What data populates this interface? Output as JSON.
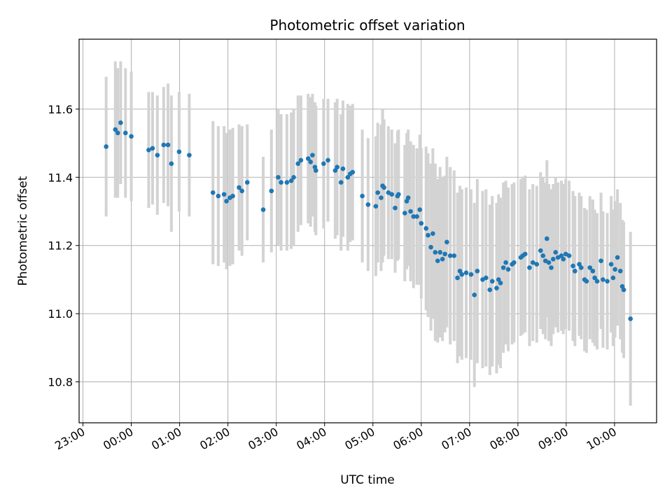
{
  "chart_data": {
    "type": "scatter",
    "title": "Photometric offset variation",
    "xlabel": "UTC time",
    "ylabel": "Photometric offset",
    "x_unit": "hours",
    "xlim": [
      -1.08,
      10.87
    ],
    "ylim": [
      10.68,
      11.805
    ],
    "x_ticks": [
      -1,
      0,
      1,
      2,
      3,
      4,
      5,
      6,
      7,
      8,
      9,
      10
    ],
    "x_tick_labels": [
      "23:00",
      "00:00",
      "01:00",
      "02:00",
      "03:00",
      "04:00",
      "05:00",
      "06:00",
      "07:00",
      "08:00",
      "09:00",
      "10:00"
    ],
    "y_ticks": [
      10.8,
      11.0,
      11.2,
      11.4,
      11.6
    ],
    "y_tick_labels": [
      "10.8",
      "11.0",
      "11.2",
      "11.4",
      "11.6"
    ],
    "grid": true,
    "colors": {
      "points": "#1f77b4",
      "error_bars": "#d3d3d3",
      "grid": "#b0b0b0"
    },
    "series": [
      {
        "points": [
          [
            -0.52,
            11.49,
            0.205
          ],
          [
            -0.33,
            11.54,
            0.2
          ],
          [
            -0.28,
            11.53,
            0.19
          ],
          [
            -0.22,
            11.56,
            0.18
          ],
          [
            -0.12,
            11.53,
            0.19
          ],
          [
            0.0,
            11.52,
            0.19
          ],
          [
            0.36,
            11.48,
            0.17
          ],
          [
            0.44,
            11.485,
            0.165
          ],
          [
            0.54,
            11.465,
            0.175
          ],
          [
            0.67,
            11.495,
            0.17
          ],
          [
            0.76,
            11.495,
            0.18
          ],
          [
            0.83,
            11.44,
            0.2
          ],
          [
            0.99,
            11.475,
            0.175
          ],
          [
            1.2,
            11.465,
            0.18
          ],
          [
            1.69,
            11.355,
            0.21
          ],
          [
            1.8,
            11.345,
            0.205
          ],
          [
            1.92,
            11.35,
            0.2
          ],
          [
            1.97,
            11.33,
            0.2
          ],
          [
            2.04,
            11.34,
            0.2
          ],
          [
            2.1,
            11.345,
            0.2
          ],
          [
            2.23,
            11.37,
            0.185
          ],
          [
            2.29,
            11.36,
            0.19
          ],
          [
            2.4,
            11.385,
            0.17
          ],
          [
            2.73,
            11.305,
            0.155
          ],
          [
            2.9,
            11.36,
            0.18
          ],
          [
            3.04,
            11.4,
            0.2
          ],
          [
            3.1,
            11.385,
            0.2
          ],
          [
            3.22,
            11.385,
            0.2
          ],
          [
            3.31,
            11.39,
            0.2
          ],
          [
            3.36,
            11.4,
            0.2
          ],
          [
            3.45,
            11.44,
            0.2
          ],
          [
            3.51,
            11.45,
            0.19
          ],
          [
            3.66,
            11.455,
            0.19
          ],
          [
            3.71,
            11.445,
            0.19
          ],
          [
            3.75,
            11.465,
            0.18
          ],
          [
            3.8,
            11.43,
            0.19
          ],
          [
            3.82,
            11.42,
            0.19
          ],
          [
            3.98,
            11.44,
            0.19
          ],
          [
            4.07,
            11.45,
            0.18
          ],
          [
            4.22,
            11.42,
            0.2
          ],
          [
            4.26,
            11.43,
            0.2
          ],
          [
            4.34,
            11.385,
            0.2
          ],
          [
            4.38,
            11.425,
            0.2
          ],
          [
            4.48,
            11.4,
            0.215
          ],
          [
            4.53,
            11.41,
            0.2
          ],
          [
            4.58,
            11.415,
            0.2
          ],
          [
            4.78,
            11.345,
            0.195
          ],
          [
            4.9,
            11.32,
            0.195
          ],
          [
            5.06,
            11.315,
            0.205
          ],
          [
            5.1,
            11.355,
            0.205
          ],
          [
            5.17,
            11.34,
            0.215
          ],
          [
            5.2,
            11.375,
            0.225
          ],
          [
            5.23,
            11.37,
            0.2
          ],
          [
            5.32,
            11.355,
            0.195
          ],
          [
            5.39,
            11.35,
            0.19
          ],
          [
            5.46,
            11.31,
            0.19
          ],
          [
            5.51,
            11.345,
            0.19
          ],
          [
            5.53,
            11.35,
            0.19
          ],
          [
            5.66,
            11.295,
            0.2
          ],
          [
            5.7,
            11.33,
            0.2
          ],
          [
            5.73,
            11.34,
            0.2
          ],
          [
            5.78,
            11.3,
            0.205
          ],
          [
            5.84,
            11.285,
            0.21
          ],
          [
            5.91,
            11.285,
            0.2
          ],
          [
            5.97,
            11.305,
            0.22
          ],
          [
            6.0,
            11.265,
            0.22
          ],
          [
            6.1,
            11.25,
            0.24
          ],
          [
            6.14,
            11.23,
            0.24
          ],
          [
            6.2,
            11.195,
            0.245
          ],
          [
            6.24,
            11.235,
            0.25
          ],
          [
            6.29,
            11.18,
            0.26
          ],
          [
            6.34,
            11.155,
            0.24
          ],
          [
            6.39,
            11.18,
            0.25
          ],
          [
            6.44,
            11.16,
            0.24
          ],
          [
            6.49,
            11.175,
            0.23
          ],
          [
            6.53,
            11.21,
            0.25
          ],
          [
            6.6,
            11.17,
            0.26
          ],
          [
            6.68,
            11.17,
            0.25
          ],
          [
            6.75,
            11.105,
            0.25
          ],
          [
            6.8,
            11.125,
            0.25
          ],
          [
            6.84,
            11.115,
            0.25
          ],
          [
            6.93,
            11.12,
            0.25
          ],
          [
            7.03,
            11.115,
            0.25
          ],
          [
            7.1,
            11.055,
            0.27
          ],
          [
            7.16,
            11.125,
            0.27
          ],
          [
            7.27,
            11.1,
            0.26
          ],
          [
            7.34,
            11.105,
            0.26
          ],
          [
            7.42,
            11.07,
            0.25
          ],
          [
            7.47,
            11.095,
            0.25
          ],
          [
            7.56,
            11.075,
            0.25
          ],
          [
            7.6,
            11.1,
            0.25
          ],
          [
            7.64,
            11.09,
            0.25
          ],
          [
            7.7,
            11.135,
            0.25
          ],
          [
            7.75,
            11.15,
            0.24
          ],
          [
            7.8,
            11.13,
            0.24
          ],
          [
            7.88,
            11.145,
            0.235
          ],
          [
            7.92,
            11.15,
            0.235
          ],
          [
            8.06,
            11.165,
            0.23
          ],
          [
            8.1,
            11.17,
            0.23
          ],
          [
            8.15,
            11.175,
            0.23
          ],
          [
            8.24,
            11.135,
            0.23
          ],
          [
            8.31,
            11.15,
            0.23
          ],
          [
            8.39,
            11.145,
            0.23
          ],
          [
            8.47,
            11.185,
            0.23
          ],
          [
            8.52,
            11.17,
            0.23
          ],
          [
            8.57,
            11.155,
            0.23
          ],
          [
            8.6,
            11.22,
            0.23
          ],
          [
            8.64,
            11.15,
            0.23
          ],
          [
            8.69,
            11.135,
            0.23
          ],
          [
            8.73,
            11.16,
            0.22
          ],
          [
            8.78,
            11.18,
            0.22
          ],
          [
            8.83,
            11.165,
            0.22
          ],
          [
            8.9,
            11.17,
            0.22
          ],
          [
            8.94,
            11.16,
            0.22
          ],
          [
            8.99,
            11.175,
            0.22
          ],
          [
            9.06,
            11.17,
            0.22
          ],
          [
            9.14,
            11.14,
            0.22
          ],
          [
            9.18,
            11.125,
            0.22
          ],
          [
            9.27,
            11.145,
            0.21
          ],
          [
            9.31,
            11.135,
            0.21
          ],
          [
            9.38,
            11.1,
            0.21
          ],
          [
            9.42,
            11.095,
            0.21
          ],
          [
            9.49,
            11.135,
            0.21
          ],
          [
            9.55,
            11.125,
            0.21
          ],
          [
            9.59,
            11.105,
            0.2
          ],
          [
            9.64,
            11.095,
            0.2
          ],
          [
            9.72,
            11.155,
            0.2
          ],
          [
            9.76,
            11.1,
            0.2
          ],
          [
            9.85,
            11.095,
            0.2
          ],
          [
            9.93,
            11.145,
            0.2
          ],
          [
            9.97,
            11.105,
            0.2
          ],
          [
            10.01,
            11.13,
            0.2
          ],
          [
            10.06,
            11.165,
            0.2
          ],
          [
            10.12,
            11.125,
            0.2
          ],
          [
            10.16,
            11.08,
            0.195
          ],
          [
            10.19,
            11.07,
            0.2
          ],
          [
            10.33,
            10.985,
            0.255
          ]
        ]
      }
    ]
  }
}
